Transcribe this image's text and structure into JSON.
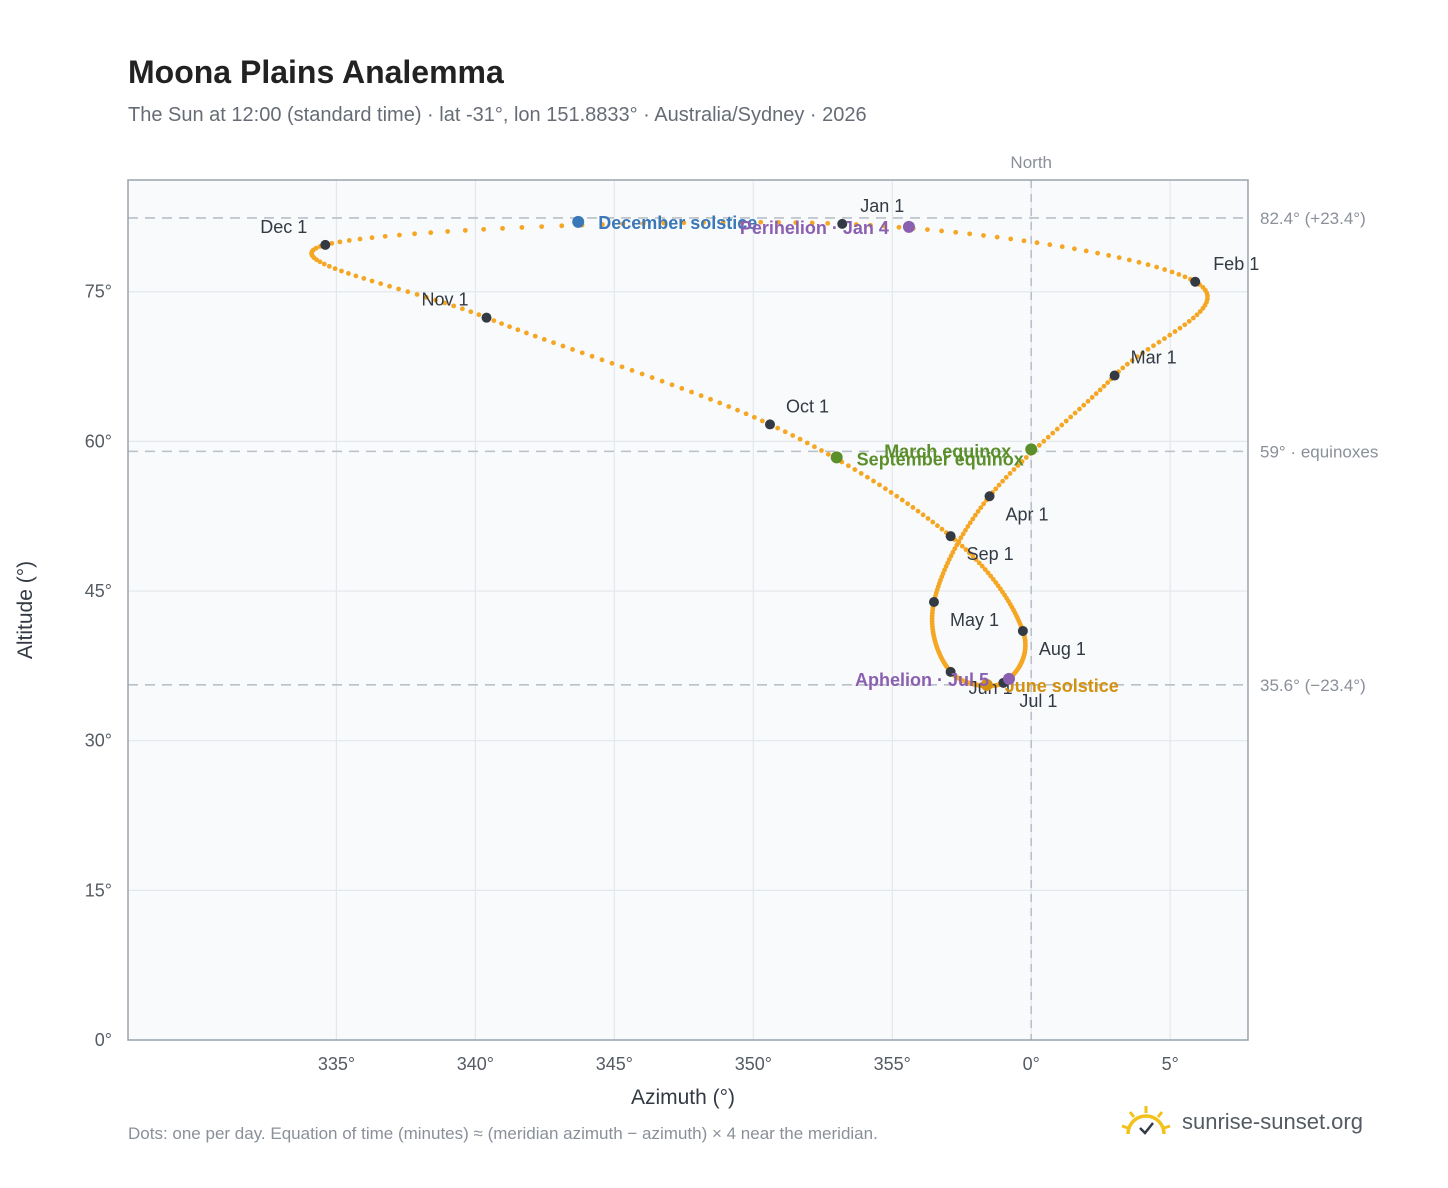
{
  "header": {
    "title": "Moona Plains Analemma",
    "subtitle": "The Sun at 12:00 (standard time) · lat -31°, lon 151.8833° · Australia/Sydney · 2026"
  },
  "footer": {
    "note": "Dots: one per day. Equation of time (minutes) ≈ (meridian azimuth − azimuth) × 4 near the meridian.",
    "brand": "sunrise-sunset.org"
  },
  "colors": {
    "curve": "#f5a623",
    "month_dot": "#333a44",
    "december_solstice": "#3a78b8",
    "june_solstice": "#d4900f",
    "equinox": "#5b8f2a",
    "apsis": "#8a5fb0",
    "reference_line": "#b9c0c8",
    "plot_bg": "#f8fafc",
    "frame": "#9aa3ae",
    "grid": "#e4e8ec"
  },
  "chart_data": {
    "type": "scatter",
    "xlabel": "Azimuth (°)",
    "ylabel": "Altitude (°)",
    "xlim": [
      327.5,
      7.8
    ],
    "ylim": [
      0,
      86.2
    ],
    "x_ticks": [
      {
        "value": 335,
        "label": "335°"
      },
      {
        "value": 340,
        "label": "340°"
      },
      {
        "value": 345,
        "label": "345°"
      },
      {
        "value": 350,
        "label": "350°"
      },
      {
        "value": 355,
        "label": "355°"
      },
      {
        "value": 0,
        "label": "0°"
      },
      {
        "value": 5,
        "label": "5°"
      }
    ],
    "y_ticks": [
      {
        "value": 0,
        "label": "0°"
      },
      {
        "value": 15,
        "label": "15°"
      },
      {
        "value": 30,
        "label": "30°"
      },
      {
        "value": 45,
        "label": "45°"
      },
      {
        "value": 60,
        "label": "60°"
      },
      {
        "value": 75,
        "label": "75°"
      }
    ],
    "grid": true,
    "meridian": {
      "azimuth": 0,
      "label": "North"
    },
    "reference_lines": [
      {
        "altitude": 82.4,
        "label": "82.4° (+23.4°)"
      },
      {
        "altitude": 59.0,
        "label": "59° · equinoxes"
      },
      {
        "altitude": 35.6,
        "label": "35.6° (−23.4°)"
      }
    ],
    "month_points": [
      {
        "label": "Jan 1",
        "azimuth": 353.2,
        "altitude": 81.8
      },
      {
        "label": "Feb 1",
        "azimuth": 5.9,
        "altitude": 76.0
      },
      {
        "label": "Mar 1",
        "azimuth": 3.0,
        "altitude": 66.6
      },
      {
        "label": "Apr 1",
        "azimuth": 358.5,
        "altitude": 54.5
      },
      {
        "label": "May 1",
        "azimuth": 356.5,
        "altitude": 43.9
      },
      {
        "label": "Jun 1",
        "azimuth": 357.1,
        "altitude": 36.9
      },
      {
        "label": "Jul 1",
        "azimuth": 359.0,
        "altitude": 35.8
      },
      {
        "label": "Aug 1",
        "azimuth": 359.7,
        "altitude": 41.0
      },
      {
        "label": "Sep 1",
        "azimuth": 357.1,
        "altitude": 50.5
      },
      {
        "label": "Oct 1",
        "azimuth": 350.6,
        "altitude": 61.7
      },
      {
        "label": "Nov 1",
        "azimuth": 340.4,
        "altitude": 72.4
      },
      {
        "label": "Dec 1",
        "azimuth": 334.6,
        "altitude": 79.7
      }
    ],
    "events": [
      {
        "label": "December solstice",
        "azimuth": 343.7,
        "altitude": 82.0,
        "color": "#3a78b8"
      },
      {
        "label": "Perihelion · Jan 4",
        "azimuth": 355.6,
        "altitude": 81.5,
        "color": "#8a5fb0"
      },
      {
        "label": "March equinox",
        "azimuth": 0.0,
        "altitude": 59.2,
        "color": "#5b8f2a"
      },
      {
        "label": "September equinox",
        "azimuth": 353.0,
        "altitude": 58.4,
        "color": "#5b8f2a"
      },
      {
        "label": "June solstice",
        "azimuth": 358.4,
        "altitude": 35.6,
        "color": "#d4900f"
      },
      {
        "label": "Aphelion · Jul 5",
        "azimuth": 359.2,
        "altitude": 36.2,
        "color": "#8a5fb0"
      }
    ]
  }
}
